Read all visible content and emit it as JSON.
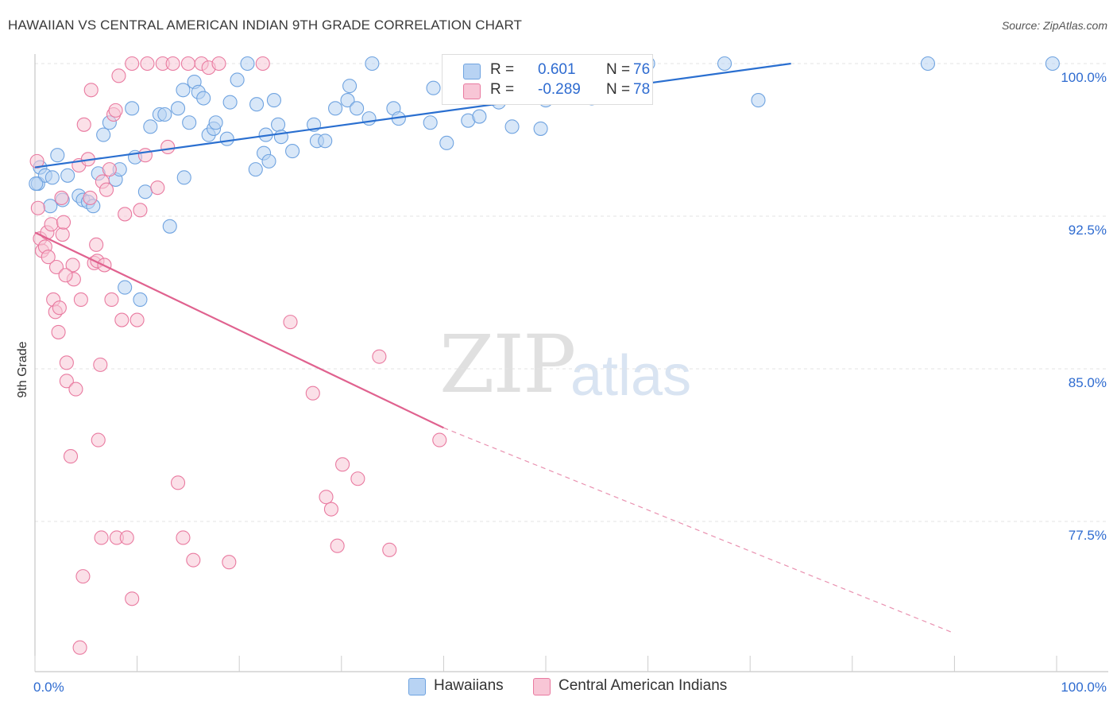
{
  "header": {
    "title": "HAWAIIAN VS CENTRAL AMERICAN INDIAN 9TH GRADE CORRELATION CHART",
    "source": "Source: ZipAtlas.com"
  },
  "watermark": {
    "zip": "ZIP",
    "atlas": "atlas"
  },
  "legend": {
    "rows": [
      {
        "r_label": "R =",
        "r_value": "0.601",
        "n_label": "N =",
        "n_value": "76",
        "color": "#a9c8f0"
      },
      {
        "r_label": "R =",
        "r_value": "-0.289",
        "n_label": "N =",
        "n_value": "78",
        "color": "#f6b9cc"
      }
    ]
  },
  "bottom_legend": [
    {
      "label": "Hawaiians",
      "color": "#a9c8f0"
    },
    {
      "label": "Central American Indians",
      "color": "#f6b9cc"
    }
  ],
  "chart_data": {
    "type": "scatter",
    "ylabel": "9th Grade",
    "xlim": [
      0,
      100
    ],
    "ylim": [
      71.5,
      100.8
    ],
    "x_tick_labels": [
      {
        "value": 0,
        "label": "0.0%"
      },
      {
        "value": 100,
        "label": "100.0%"
      }
    ],
    "y_tick_labels": [
      {
        "value": 100,
        "label": "100.0%"
      },
      {
        "value": 92.5,
        "label": "92.5%"
      },
      {
        "value": 85,
        "label": "85.0%"
      },
      {
        "value": 77.5,
        "label": "77.5%"
      }
    ],
    "grid": true,
    "series": [
      {
        "name": "Hawaiians",
        "color": "#6fa3e0",
        "fill": "#b8d3f3",
        "trend": {
          "x": [
            0,
            74
          ],
          "y": [
            94.9,
            100.0
          ],
          "style": "solid"
        },
        "points": [
          [
            0.3,
            94.1
          ],
          [
            0.5,
            94.9
          ],
          [
            1.0,
            94.5
          ],
          [
            1.7,
            94.4
          ],
          [
            2.2,
            95.5
          ],
          [
            2.7,
            93.3
          ],
          [
            3.2,
            94.5
          ],
          [
            4.3,
            93.5
          ],
          [
            4.7,
            93.3
          ],
          [
            5.2,
            93.2
          ],
          [
            5.7,
            93.0
          ],
          [
            6.2,
            94.6
          ],
          [
            6.7,
            96.5
          ],
          [
            7.3,
            97.1
          ],
          [
            7.9,
            94.3
          ],
          [
            8.3,
            94.8
          ],
          [
            8.8,
            89.0
          ],
          [
            9.5,
            97.8
          ],
          [
            9.8,
            95.4
          ],
          [
            10.3,
            88.4
          ],
          [
            10.8,
            93.7
          ],
          [
            11.3,
            96.9
          ],
          [
            12.2,
            97.5
          ],
          [
            12.7,
            97.5
          ],
          [
            13.2,
            92.0
          ],
          [
            14.0,
            97.8
          ],
          [
            14.5,
            98.7
          ],
          [
            14.6,
            94.4
          ],
          [
            15.1,
            97.1
          ],
          [
            15.6,
            99.1
          ],
          [
            16.0,
            98.6
          ],
          [
            16.5,
            98.3
          ],
          [
            17.0,
            96.5
          ],
          [
            17.5,
            96.8
          ],
          [
            17.7,
            97.1
          ],
          [
            18.8,
            96.3
          ],
          [
            19.1,
            98.1
          ],
          [
            19.8,
            99.2
          ],
          [
            20.8,
            100.0
          ],
          [
            21.6,
            94.8
          ],
          [
            21.7,
            98.0
          ],
          [
            22.4,
            95.6
          ],
          [
            22.6,
            96.5
          ],
          [
            22.9,
            95.2
          ],
          [
            23.4,
            98.2
          ],
          [
            23.8,
            97.0
          ],
          [
            24.1,
            96.4
          ],
          [
            25.2,
            95.7
          ],
          [
            27.3,
            97.0
          ],
          [
            27.6,
            96.2
          ],
          [
            28.4,
            96.2
          ],
          [
            29.4,
            97.8
          ],
          [
            30.6,
            98.2
          ],
          [
            30.8,
            98.9
          ],
          [
            31.5,
            97.8
          ],
          [
            32.7,
            97.3
          ],
          [
            33.0,
            100.0
          ],
          [
            35.1,
            97.8
          ],
          [
            35.6,
            97.3
          ],
          [
            38.7,
            97.1
          ],
          [
            39.0,
            98.8
          ],
          [
            40.3,
            96.1
          ],
          [
            42.4,
            97.2
          ],
          [
            43.5,
            97.4
          ],
          [
            45.4,
            98.1
          ],
          [
            46.7,
            96.9
          ],
          [
            49.5,
            96.8
          ],
          [
            50.0,
            98.2
          ],
          [
            54.5,
            98.3
          ],
          [
            60.0,
            100.0
          ],
          [
            67.5,
            100.0
          ],
          [
            70.8,
            98.2
          ],
          [
            87.4,
            100.0
          ],
          [
            99.6,
            100.0
          ],
          [
            0.1,
            94.1
          ],
          [
            1.5,
            93.0
          ]
        ]
      },
      {
        "name": "Central American Indians",
        "color": "#e97aa0",
        "fill": "#f8c6d6",
        "trend": {
          "x": [
            0,
            40
          ],
          "y": [
            91.7,
            82.1
          ],
          "style": "solid",
          "dash_x": [
            40,
            90
          ],
          "dash_y": [
            82.1,
            72.0
          ]
        },
        "points": [
          [
            0.2,
            95.2
          ],
          [
            0.3,
            92.9
          ],
          [
            0.5,
            91.4
          ],
          [
            0.7,
            90.8
          ],
          [
            1.0,
            91.0
          ],
          [
            1.2,
            91.7
          ],
          [
            1.6,
            92.1
          ],
          [
            1.8,
            88.4
          ],
          [
            2.0,
            87.8
          ],
          [
            2.1,
            90.0
          ],
          [
            2.3,
            86.8
          ],
          [
            2.6,
            93.4
          ],
          [
            2.7,
            91.6
          ],
          [
            2.8,
            92.2
          ],
          [
            3.1,
            84.4
          ],
          [
            3.1,
            85.3
          ],
          [
            3.5,
            80.7
          ],
          [
            3.7,
            90.1
          ],
          [
            3.8,
            89.4
          ],
          [
            4.0,
            84.0
          ],
          [
            4.3,
            95.0
          ],
          [
            4.4,
            71.3
          ],
          [
            4.5,
            88.4
          ],
          [
            4.7,
            74.8
          ],
          [
            4.8,
            97.0
          ],
          [
            5.2,
            95.3
          ],
          [
            5.4,
            93.4
          ],
          [
            5.5,
            98.7
          ],
          [
            5.8,
            90.2
          ],
          [
            6.0,
            91.1
          ],
          [
            6.1,
            90.3
          ],
          [
            6.2,
            81.5
          ],
          [
            6.4,
            85.2
          ],
          [
            6.5,
            76.7
          ],
          [
            6.6,
            94.2
          ],
          [
            6.8,
            90.1
          ],
          [
            7.0,
            93.8
          ],
          [
            7.3,
            94.8
          ],
          [
            7.5,
            88.4
          ],
          [
            7.7,
            97.5
          ],
          [
            7.9,
            97.7
          ],
          [
            8.0,
            76.7
          ],
          [
            8.2,
            99.4
          ],
          [
            8.5,
            87.4
          ],
          [
            8.8,
            92.6
          ],
          [
            9.0,
            76.7
          ],
          [
            9.5,
            73.7
          ],
          [
            9.5,
            100.0
          ],
          [
            10.0,
            87.4
          ],
          [
            10.3,
            92.8
          ],
          [
            10.8,
            95.5
          ],
          [
            11.0,
            100.0
          ],
          [
            12.0,
            93.9
          ],
          [
            12.5,
            100.0
          ],
          [
            13.0,
            95.9
          ],
          [
            13.5,
            100.0
          ],
          [
            14.0,
            79.4
          ],
          [
            14.5,
            76.7
          ],
          [
            15.0,
            100.0
          ],
          [
            15.5,
            75.6
          ],
          [
            16.3,
            100.0
          ],
          [
            17.0,
            99.8
          ],
          [
            18.0,
            100.0
          ],
          [
            19.0,
            75.5
          ],
          [
            22.3,
            100.0
          ],
          [
            25.0,
            87.3
          ],
          [
            27.2,
            83.8
          ],
          [
            28.5,
            78.7
          ],
          [
            29.0,
            78.1
          ],
          [
            29.6,
            76.3
          ],
          [
            30.1,
            80.3
          ],
          [
            31.6,
            79.6
          ],
          [
            33.7,
            85.6
          ],
          [
            34.7,
            76.1
          ],
          [
            39.6,
            81.5
          ],
          [
            3.0,
            89.6
          ],
          [
            1.3,
            90.5
          ],
          [
            2.4,
            88.0
          ]
        ]
      }
    ]
  }
}
